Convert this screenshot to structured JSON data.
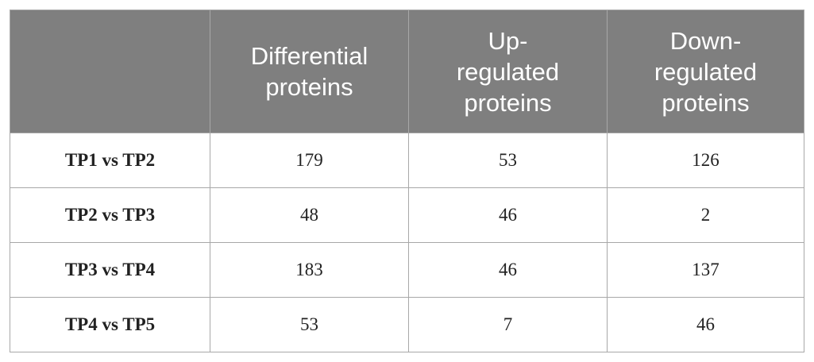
{
  "table": {
    "headers": [
      "",
      "Differential proteins",
      "Up-regulated proteins",
      "Down-regulated proteins"
    ],
    "rows": [
      [
        "TP1 vs TP2",
        179,
        53,
        126
      ],
      [
        "TP2 vs TP3",
        48,
        46,
        2
      ],
      [
        "TP3 vs TP4",
        183,
        46,
        137
      ],
      [
        "TP4 vs TP5",
        53,
        7,
        46
      ]
    ]
  }
}
